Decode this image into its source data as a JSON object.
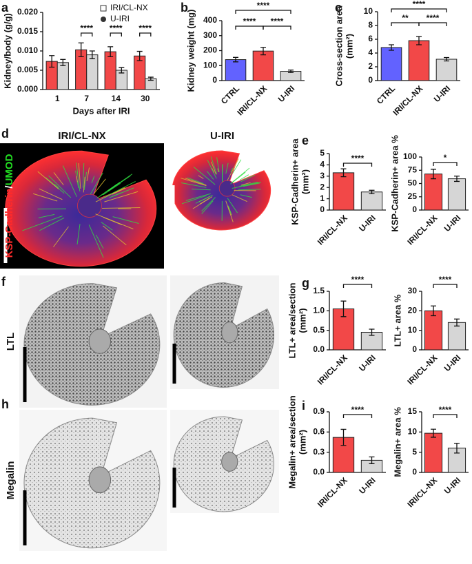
{
  "chart_data": [
    {
      "type": "bar",
      "panel": "a",
      "ylabel": [
        "Kidney/body (g/g)"
      ],
      "xlabel": "Days after IRI",
      "categories": [
        "1",
        "7",
        "14",
        "30"
      ],
      "series": [
        {
          "name": "IRI/CL-NX",
          "color": "#f24848",
          "marker": "square",
          "values": [
            0.0073,
            0.0103,
            0.0098,
            0.0087
          ],
          "errors": [
            0.0015,
            0.0018,
            0.0013,
            0.0012
          ]
        },
        {
          "name": "U-IRI",
          "color": "#d6d6d6",
          "marker": "circle",
          "values": [
            0.007,
            0.009,
            0.005,
            0.0028
          ],
          "errors": [
            0.0008,
            0.001,
            0.0007,
            0.0004
          ]
        }
      ],
      "ylim": [
        0,
        0.02
      ],
      "yticks": [
        {
          "value": 0,
          "label": "0.000"
        },
        0.005,
        {
          "value": 0.01,
          "label": "0.010"
        },
        0.015,
        {
          "value": 0.02,
          "label": "0.020"
        }
      ],
      "annotations": [
        {
          "category": "7",
          "label": "****"
        },
        {
          "category": "14",
          "label": "****"
        },
        {
          "category": "30",
          "label": "****"
        }
      ]
    },
    {
      "type": "bar",
      "panel": "b",
      "ylabel": [
        "Kidney weight (mg)"
      ],
      "categories": [
        "CTRL",
        "IRI/CL-NX",
        "U-IRI"
      ],
      "values": [
        140,
        197,
        62
      ],
      "errors": [
        15,
        25,
        8
      ],
      "colors": [
        "#6262ff",
        "#f24848",
        "#d6d6d6"
      ],
      "ylim": [
        0,
        400
      ],
      "yticks": [
        0,
        100,
        200,
        300,
        400
      ],
      "comparisons": [
        {
          "pair": [
            "CTRL",
            "U-IRI"
          ],
          "label": "****"
        },
        {
          "pair": [
            "CTRL",
            "IRI/CL-NX"
          ],
          "label": "****"
        },
        {
          "pair": [
            "IRI/CL-NX",
            "U-IRI"
          ],
          "label": "****"
        }
      ]
    },
    {
      "type": "bar",
      "panel": "c",
      "ylabel": [
        "Cross-section area",
        "(mm²)"
      ],
      "categories": [
        "CTRL",
        "IRI/CL-NX",
        "U-IRI"
      ],
      "values": [
        4.8,
        5.8,
        3.1
      ],
      "errors": [
        0.4,
        0.6,
        0.25
      ],
      "colors": [
        "#6262ff",
        "#f24848",
        "#d6d6d6"
      ],
      "ylim": [
        0,
        10
      ],
      "yticks": [
        0,
        2,
        4,
        6,
        8,
        10
      ],
      "comparisons": [
        {
          "pair": [
            "CTRL",
            "U-IRI"
          ],
          "label": "****"
        },
        {
          "pair": [
            "CTRL",
            "IRI/CL-NX"
          ],
          "label": "**"
        },
        {
          "pair": [
            "IRI/CL-NX",
            "U-IRI"
          ],
          "label": "****"
        }
      ]
    },
    {
      "type": "bar",
      "panel": "e",
      "ylabel": [
        "KSP-Cadherin+ area",
        "(mm²)"
      ],
      "categories": [
        "IRI/CL-NX",
        "U-IRI"
      ],
      "values": [
        3.3,
        1.6
      ],
      "errors": [
        0.35,
        0.15
      ],
      "colors": [
        "#f24848",
        "#d6d6d6"
      ],
      "ylim": [
        0,
        5
      ],
      "yticks": [
        0,
        1,
        2,
        3,
        4,
        5
      ],
      "comparisons": [
        {
          "pair": [
            "IRI/CL-NX",
            "U-IRI"
          ],
          "label": "****"
        }
      ]
    },
    {
      "type": "bar",
      "ylabel": [
        "KSP-Cadherin+ area %"
      ],
      "categories": [
        "IRI/CL-NX",
        "U-IRI"
      ],
      "values": [
        68,
        59
      ],
      "errors": [
        9,
        5
      ],
      "colors": [
        "#f24848",
        "#d6d6d6"
      ],
      "ylim": [
        0,
        100
      ],
      "yticks": [
        0,
        25,
        50,
        75,
        100
      ],
      "comparisons": [
        {
          "pair": [
            "IRI/CL-NX",
            "U-IRI"
          ],
          "label": "*"
        }
      ]
    },
    {
      "type": "bar",
      "panel": "g",
      "ylabel": [
        "LTL+ area/section",
        "(mm²)"
      ],
      "categories": [
        "IRI/CL-NX",
        "U-IRI"
      ],
      "values": [
        1.05,
        0.45
      ],
      "errors": [
        0.2,
        0.08
      ],
      "colors": [
        "#f24848",
        "#d6d6d6"
      ],
      "ylim": [
        0,
        1.5
      ],
      "yticks": [
        {
          "value": 0,
          "label": "0.0"
        },
        0.5,
        {
          "value": 1,
          "label": "1.0"
        },
        1.5
      ],
      "comparisons": [
        {
          "pair": [
            "IRI/CL-NX",
            "U-IRI"
          ],
          "label": "****"
        }
      ]
    },
    {
      "type": "bar",
      "ylabel": [
        "LTL+ area %"
      ],
      "categories": [
        "IRI/CL-NX",
        "U-IRI"
      ],
      "values": [
        20,
        14
      ],
      "errors": [
        2.5,
        1.8
      ],
      "colors": [
        "#f24848",
        "#d6d6d6"
      ],
      "ylim": [
        0,
        30
      ],
      "yticks": [
        0,
        10,
        20,
        30
      ],
      "comparisons": [
        {
          "pair": [
            "IRI/CL-NX",
            "U-IRI"
          ],
          "label": "****"
        }
      ]
    },
    {
      "type": "bar",
      "panel": "i",
      "ylabel": [
        "Megalin+ area/section",
        "(mm²)"
      ],
      "categories": [
        "IRI/CL-NX",
        "U-IRI"
      ],
      "values": [
        0.52,
        0.18
      ],
      "errors": [
        0.12,
        0.05
      ],
      "colors": [
        "#f24848",
        "#d6d6d6"
      ],
      "ylim": [
        0,
        0.9
      ],
      "yticks": [
        {
          "value": 0,
          "label": "0.0"
        },
        0.3,
        0.6,
        0.9
      ],
      "comparisons": [
        {
          "pair": [
            "IRI/CL-NX",
            "U-IRI"
          ],
          "label": "****"
        }
      ]
    },
    {
      "type": "bar",
      "ylabel": [
        "Megalin+ area %"
      ],
      "categories": [
        "IRI/CL-NX",
        "U-IRI"
      ],
      "values": [
        9.7,
        6.0
      ],
      "errors": [
        1.0,
        1.2
      ],
      "colors": [
        "#f24848",
        "#d6d6d6"
      ],
      "ylim": [
        0,
        15
      ],
      "yticks": [
        0,
        5,
        10,
        15
      ],
      "comparisons": [
        {
          "pair": [
            "IRI/CL-NX",
            "U-IRI"
          ],
          "label": "****"
        }
      ]
    }
  ],
  "images": [
    {
      "panel": "d",
      "titles": [
        "IRI/CL-NX",
        "U-IRI"
      ],
      "stain": [
        "KSP-Cadherin",
        "/",
        "UMOD"
      ],
      "stain_colors": [
        "#ff2a2a",
        "#ffffff",
        "#22dd22"
      ]
    },
    {
      "panel": "f",
      "stain": [
        "LTL"
      ],
      "stain_colors": [
        "#111111"
      ]
    },
    {
      "panel": "h",
      "stain": [
        "Megalin"
      ],
      "stain_colors": [
        "#111111"
      ]
    }
  ]
}
